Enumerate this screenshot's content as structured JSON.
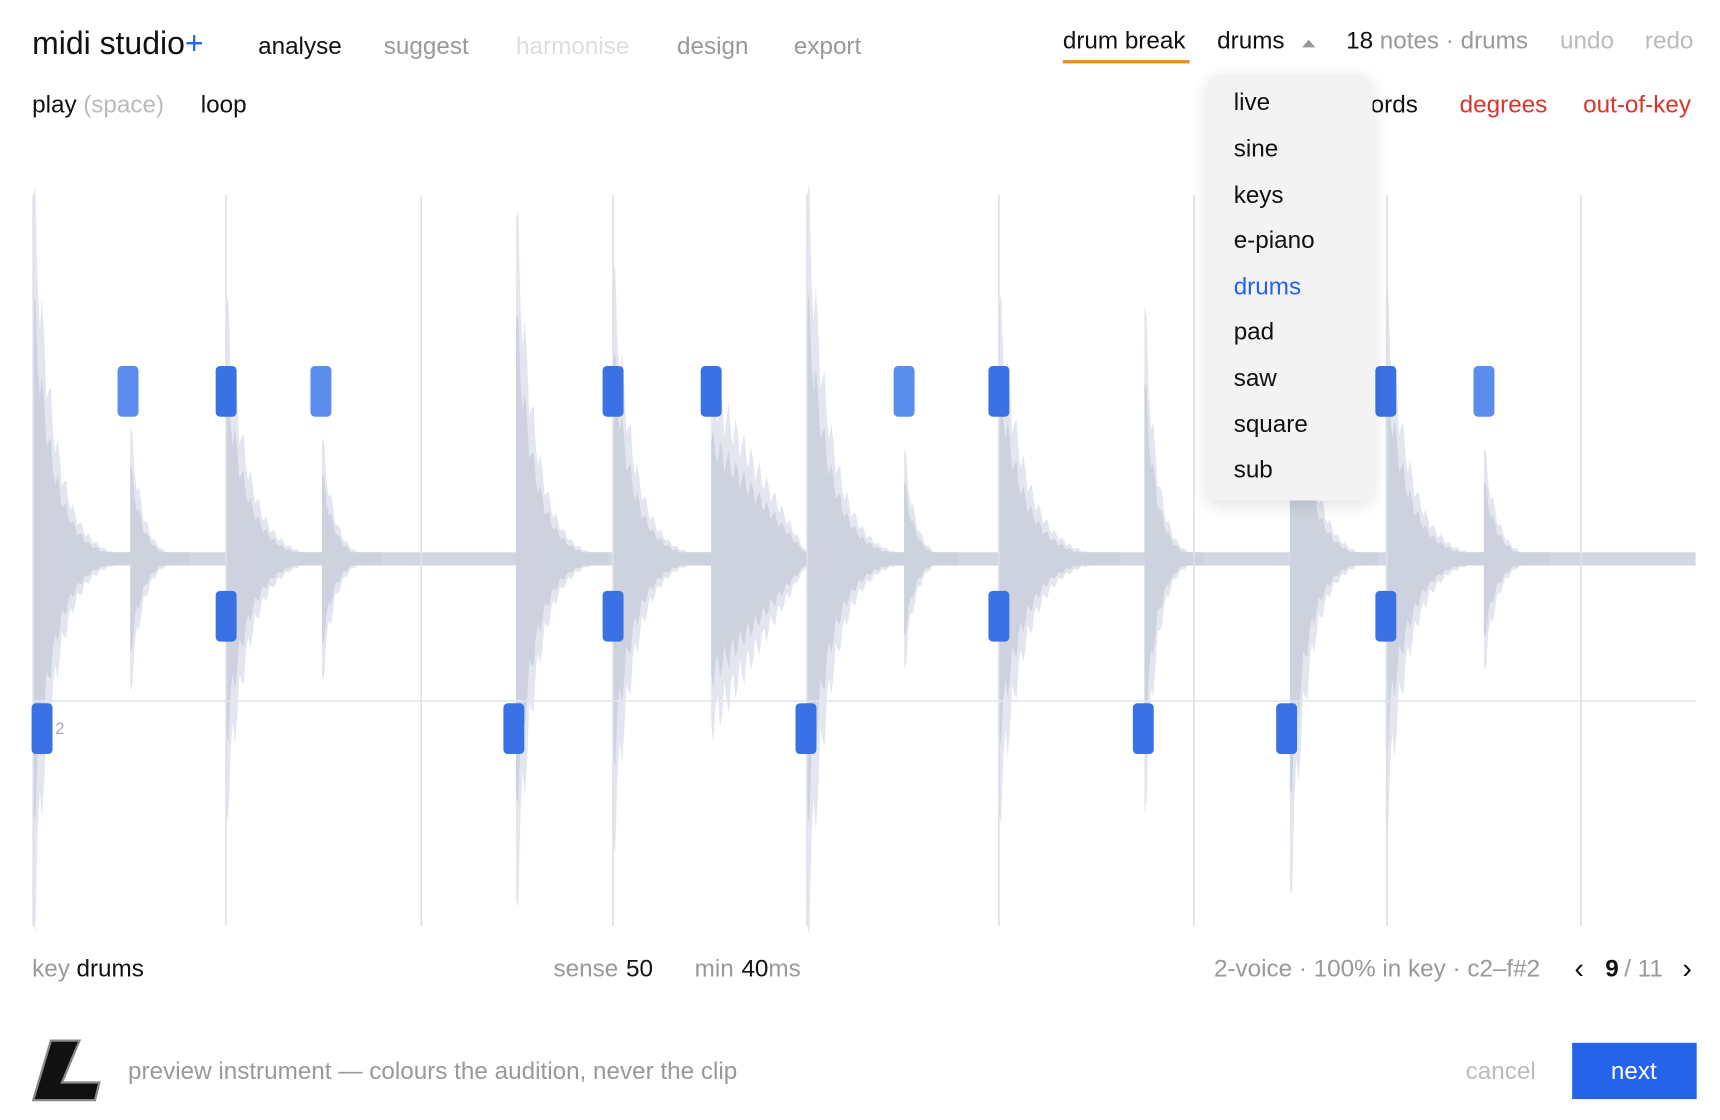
{
  "header": {
    "brand": "midi studio",
    "brand_plus": "+",
    "tabs": [
      "analyse",
      "suggest",
      "harmonise",
      "design",
      "export"
    ],
    "clip": "drum break",
    "instrument": "drums",
    "note_count": 18,
    "note_info": "notes · drums",
    "undo": "undo",
    "redo": "redo"
  },
  "toolbar": {
    "play": "play",
    "play_hint": "(space)",
    "loop": "loop",
    "views": [
      "chords",
      "degrees",
      "out-of-key"
    ]
  },
  "instrument_menu": {
    "items": [
      "live",
      "sine",
      "keys",
      "e-piano",
      "drums",
      "pad",
      "saw",
      "square",
      "sub"
    ],
    "selected": 4
  },
  "piano_roll": {
    "row_label": "2"
  },
  "footer": {
    "key_label": "key",
    "key": "drums",
    "sense_label": "sense",
    "sense": 50,
    "min_label": "min",
    "min": 40,
    "min_unit": "ms",
    "summary": "2-voice · 100% in key · c2–f#2",
    "prev": "‹",
    "page": 9,
    "page_total": "/ 11",
    "next_arrow": "›"
  },
  "bottom": {
    "hint": "preview instrument — colours the audition, never the clip",
    "cancel": "cancel",
    "next": "next"
  }
}
